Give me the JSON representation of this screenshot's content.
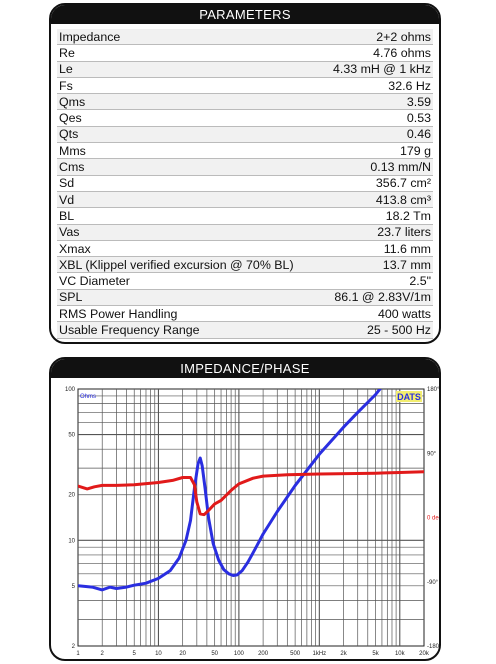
{
  "parameters": {
    "title": "PARAMETERS",
    "rows": [
      {
        "label": "Impedance",
        "value": "2+2 ohms"
      },
      {
        "label": "Re",
        "value": "4.76 ohms"
      },
      {
        "label": "Le",
        "value": "4.33 mH @ 1 kHz"
      },
      {
        "label": "Fs",
        "value": "32.6 Hz"
      },
      {
        "label": "Qms",
        "value": "3.59"
      },
      {
        "label": "Qes",
        "value": "0.53"
      },
      {
        "label": "Qts",
        "value": "0.46"
      },
      {
        "label": "Mms",
        "value": "179 g"
      },
      {
        "label": "Cms",
        "value": "0.13 mm/N"
      },
      {
        "label": "Sd",
        "value": "356.7 cm²"
      },
      {
        "label": "Vd",
        "value": "413.8 cm³"
      },
      {
        "label": "BL",
        "value": "18.2 Tm"
      },
      {
        "label": "Vas",
        "value": "23.7 liters"
      },
      {
        "label": "Xmax",
        "value": "11.6 mm"
      },
      {
        "label": "XBL (Klippel verified excursion @ 70% BL)",
        "value": "13.7 mm"
      },
      {
        "label": "VC Diameter",
        "value": "2.5\""
      },
      {
        "label": "SPL",
        "value": "86.1 @ 2.83V/1m"
      },
      {
        "label": "RMS Power Handling",
        "value": "400 watts"
      },
      {
        "label": "Usable Frequency Range",
        "value": "25 - 500 Hz"
      }
    ]
  },
  "chart_data": {
    "type": "line",
    "title": "IMPEDANCE/PHASE",
    "watermark": "DATS",
    "x_scale": "log",
    "y_scale": "log",
    "xlim": [
      1,
      20000
    ],
    "ylim": [
      2,
      100
    ],
    "y2lim": [
      -180,
      180
    ],
    "grid": true,
    "legend": "none",
    "left_axis_label": "Ohms",
    "right_axis_label": "0 deg",
    "x_ticks": [
      {
        "value": 1,
        "label": "1"
      },
      {
        "value": 2,
        "label": "2"
      },
      {
        "value": 5,
        "label": "5"
      },
      {
        "value": 10,
        "label": "10"
      },
      {
        "value": 20,
        "label": "20"
      },
      {
        "value": 50,
        "label": "50"
      },
      {
        "value": 100,
        "label": "100"
      },
      {
        "value": 200,
        "label": "200"
      },
      {
        "value": 500,
        "label": "500"
      },
      {
        "value": 1000,
        "label": "1kHz"
      },
      {
        "value": 2000,
        "label": "2k"
      },
      {
        "value": 5000,
        "label": "5k"
      },
      {
        "value": 10000,
        "label": "10k"
      },
      {
        "value": 20000,
        "label": "20k"
      }
    ],
    "y_ticks": [
      {
        "value": 100,
        "label": "100"
      },
      {
        "value": 50,
        "label": "50"
      },
      {
        "value": 20,
        "label": "20"
      },
      {
        "value": 10,
        "label": "10"
      },
      {
        "value": 5,
        "label": "5"
      },
      {
        "value": 2,
        "label": "2"
      }
    ],
    "y2_ticks": [
      {
        "value": 180,
        "label": "180°"
      },
      {
        "value": 90,
        "label": "90°"
      },
      {
        "value": -90,
        "label": "-90°"
      },
      {
        "value": -180,
        "label": "-180°"
      }
    ],
    "series": [
      {
        "key": "impedance",
        "axis": "left",
        "color": "#2a2ee0",
        "points": [
          [
            1,
            5.0
          ],
          [
            1.5,
            4.9
          ],
          [
            2,
            4.7
          ],
          [
            2.5,
            4.9
          ],
          [
            3,
            4.8
          ],
          [
            4,
            4.9
          ],
          [
            5,
            5.05
          ],
          [
            7,
            5.2
          ],
          [
            10,
            5.6
          ],
          [
            14,
            6.3
          ],
          [
            18,
            7.6
          ],
          [
            22,
            10
          ],
          [
            25,
            13.5
          ],
          [
            28,
            22
          ],
          [
            31,
            32
          ],
          [
            33,
            35
          ],
          [
            35,
            31
          ],
          [
            38,
            22
          ],
          [
            42,
            14
          ],
          [
            48,
            9.5
          ],
          [
            56,
            7.4
          ],
          [
            65,
            6.4
          ],
          [
            75,
            6.0
          ],
          [
            85,
            5.85
          ],
          [
            95,
            5.9
          ],
          [
            110,
            6.3
          ],
          [
            130,
            7.2
          ],
          [
            160,
            8.8
          ],
          [
            200,
            11
          ],
          [
            300,
            15.5
          ],
          [
            500,
            23
          ],
          [
            1000,
            37
          ],
          [
            2000,
            56
          ],
          [
            3000,
            70
          ],
          [
            5000,
            92
          ],
          [
            7000,
            115
          ]
        ]
      },
      {
        "key": "phase",
        "axis": "right",
        "color": "#e11a1a",
        "points": [
          [
            1,
            44
          ],
          [
            1.3,
            40
          ],
          [
            1.6,
            43
          ],
          [
            2,
            45
          ],
          [
            3,
            45
          ],
          [
            5,
            46
          ],
          [
            10,
            49
          ],
          [
            15,
            52
          ],
          [
            20,
            56
          ],
          [
            25,
            56
          ],
          [
            28,
            46
          ],
          [
            30,
            22
          ],
          [
            33,
            5
          ],
          [
            37,
            4
          ],
          [
            42,
            10
          ],
          [
            50,
            19
          ],
          [
            60,
            24
          ],
          [
            80,
            38
          ],
          [
            100,
            47
          ],
          [
            150,
            55
          ],
          [
            200,
            58
          ],
          [
            400,
            60
          ],
          [
            1000,
            61
          ],
          [
            5000,
            62
          ],
          [
            10000,
            63
          ],
          [
            20000,
            64
          ]
        ]
      }
    ]
  }
}
